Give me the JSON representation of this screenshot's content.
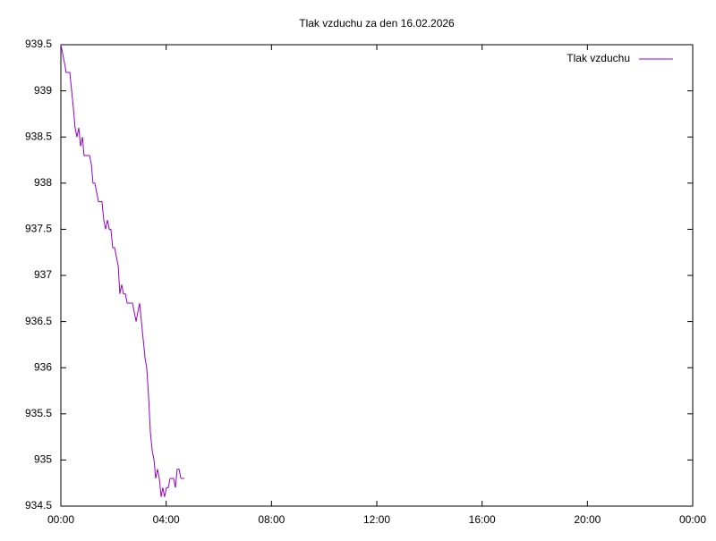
{
  "chart_data": {
    "type": "line",
    "title": "Tlak vzduchu za den 16.02.2026",
    "x": [
      0,
      0.07,
      0.14,
      0.2,
      0.34,
      0.41,
      0.48,
      0.54,
      0.61,
      0.68,
      0.75,
      0.82,
      0.88,
      1.09,
      1.16,
      1.22,
      1.29,
      1.36,
      1.43,
      1.56,
      1.63,
      1.7,
      1.77,
      1.84,
      1.9,
      1.97,
      2.04,
      2.11,
      2.18,
      2.24,
      2.31,
      2.38,
      2.45,
      2.52,
      2.72,
      2.79,
      2.86,
      2.92,
      2.99,
      3.06,
      3.13,
      3.2,
      3.26,
      3.33,
      3.4,
      3.47,
      3.54,
      3.6,
      3.67,
      3.74,
      3.81,
      3.87,
      3.94,
      4.01,
      4.08,
      4.15,
      4.28,
      4.35,
      4.42,
      4.49,
      4.56,
      4.69
    ],
    "series": [
      {
        "name": "Tlak vzduchu",
        "color": "#9400d3",
        "values": [
          939.5,
          939.4,
          939.3,
          939.2,
          939.2,
          939.0,
          938.8,
          938.6,
          938.5,
          938.6,
          938.4,
          938.5,
          938.3,
          938.3,
          938.2,
          938.0,
          938.0,
          937.9,
          937.8,
          937.8,
          937.6,
          937.5,
          937.6,
          937.5,
          937.5,
          937.3,
          937.3,
          937.2,
          937.1,
          936.8,
          936.9,
          936.8,
          936.8,
          936.7,
          936.7,
          936.6,
          936.5,
          936.6,
          936.7,
          936.5,
          936.3,
          936.1,
          936.0,
          935.7,
          935.3,
          935.1,
          935.0,
          934.8,
          934.9,
          934.8,
          934.6,
          934.7,
          934.6,
          934.7,
          934.7,
          934.8,
          934.8,
          934.7,
          934.9,
          934.9,
          934.8,
          934.8
        ]
      }
    ],
    "xlim": [
      0,
      24
    ],
    "xticks": [
      {
        "value": 0,
        "label": "00:00"
      },
      {
        "value": 4,
        "label": "04:00"
      },
      {
        "value": 8,
        "label": "08:00"
      },
      {
        "value": 12,
        "label": "12:00"
      },
      {
        "value": 16,
        "label": "16:00"
      },
      {
        "value": 20,
        "label": "20:00"
      },
      {
        "value": 24,
        "label": "00:00"
      }
    ],
    "ylim": [
      934.5,
      939.5
    ],
    "yticks": [
      934.5,
      935,
      935.5,
      936,
      936.5,
      937,
      937.5,
      938,
      938.5,
      939,
      939.5
    ],
    "legend": "top-right"
  }
}
